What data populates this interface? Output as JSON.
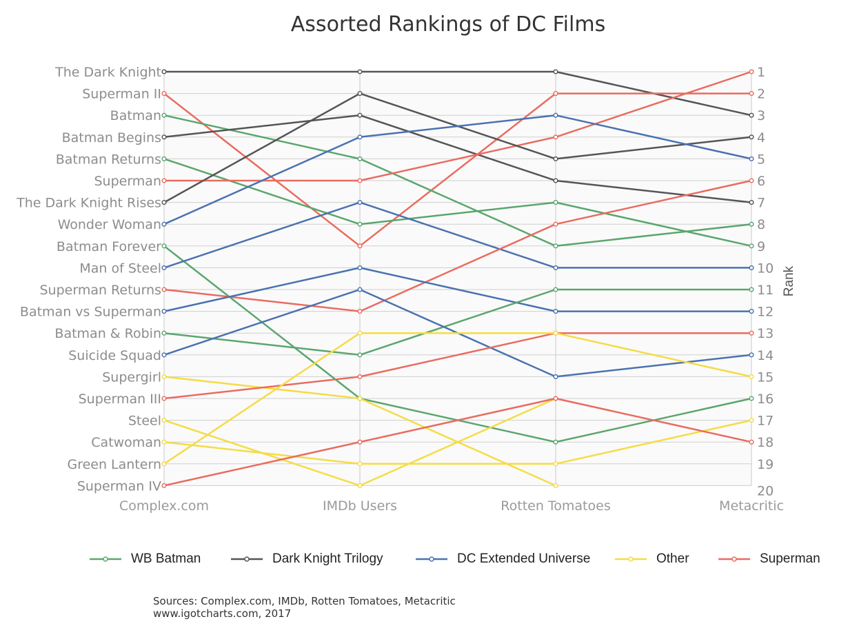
{
  "chart_data": {
    "type": "line",
    "title": "Assorted Rankings of DC Films",
    "ylabel": "Rank",
    "x": [
      "Complex.com",
      "IMDb Users",
      "Rotten Tomatoes",
      "Metacritic"
    ],
    "ylim": [
      1,
      20
    ],
    "y_inverted": true,
    "grid": true,
    "legend_position": "bottom",
    "left_labels": [
      "The Dark Knight",
      "Superman II",
      "Batman",
      "Batman Begins",
      "Batman Returns",
      "Superman",
      "The Dark Knight Rises",
      "Wonder Woman",
      "Batman Forever",
      "Man of Steel",
      "Superman Returns",
      "Batman vs Superman",
      "Batman & Robin",
      "Suicide Squad",
      "Supergirl",
      "Superman III",
      "Steel",
      "Catwoman",
      "Green Lantern",
      "Superman IV"
    ],
    "right_ticks": [
      "1",
      "2",
      "3",
      "4",
      "5",
      "6",
      "7",
      "8",
      "9",
      "10",
      "11",
      "12",
      "13",
      "14",
      "15",
      "16",
      "17",
      "18",
      "19",
      "20"
    ],
    "groups": [
      {
        "name": "WB Batman",
        "color": "#5aa66d"
      },
      {
        "name": "Dark Knight Trilogy",
        "color": "#555555"
      },
      {
        "name": "DC Extended Universe",
        "color": "#4a72b0"
      },
      {
        "name": "Other",
        "color": "#f5dc45"
      },
      {
        "name": "Superman",
        "color": "#ea6b5f"
      }
    ],
    "series": [
      {
        "name": "The Dark Knight",
        "group": "Dark Knight Trilogy",
        "values": [
          1,
          1,
          1,
          3
        ]
      },
      {
        "name": "Superman II",
        "group": "Superman",
        "values": [
          2,
          9,
          2,
          2
        ]
      },
      {
        "name": "Batman",
        "group": "WB Batman",
        "values": [
          3,
          5,
          9,
          8
        ]
      },
      {
        "name": "Batman Begins",
        "group": "Dark Knight Trilogy",
        "values": [
          4,
          3,
          6,
          7
        ]
      },
      {
        "name": "Batman Returns",
        "group": "WB Batman",
        "values": [
          5,
          8,
          7,
          9
        ]
      },
      {
        "name": "Superman",
        "group": "Superman",
        "values": [
          6,
          6,
          4,
          1
        ]
      },
      {
        "name": "The Dark Knight Rises",
        "group": "Dark Knight Trilogy",
        "values": [
          7,
          2,
          5,
          4
        ]
      },
      {
        "name": "Wonder Woman",
        "group": "DC Extended Universe",
        "values": [
          8,
          4,
          3,
          5
        ]
      },
      {
        "name": "Batman Forever",
        "group": "WB Batman",
        "values": [
          9,
          16,
          18,
          16
        ]
      },
      {
        "name": "Man of Steel",
        "group": "DC Extended Universe",
        "values": [
          10,
          7,
          10,
          10
        ]
      },
      {
        "name": "Superman Returns",
        "group": "Superman",
        "values": [
          11,
          12,
          8,
          6
        ]
      },
      {
        "name": "Batman vs Superman",
        "group": "DC Extended Universe",
        "values": [
          12,
          10,
          12,
          12
        ]
      },
      {
        "name": "Batman & Robin",
        "group": "WB Batman",
        "values": [
          13,
          14,
          11,
          11
        ]
      },
      {
        "name": "Suicide Squad",
        "group": "DC Extended Universe",
        "values": [
          14,
          11,
          15,
          14
        ]
      },
      {
        "name": "Supergirl",
        "group": "Other",
        "values": [
          15,
          16,
          20,
          null
        ]
      },
      {
        "name": "Superman III",
        "group": "Superman",
        "values": [
          16,
          15,
          13,
          13
        ]
      },
      {
        "name": "Steel",
        "group": "Other",
        "values": [
          17,
          20,
          16,
          null
        ]
      },
      {
        "name": "Catwoman",
        "group": "Other",
        "values": [
          18,
          19,
          19,
          17
        ]
      },
      {
        "name": "Green Lantern",
        "group": "Other",
        "values": [
          19,
          13,
          13,
          15
        ]
      },
      {
        "name": "Superman IV",
        "group": "Superman",
        "values": [
          20,
          18,
          16,
          18
        ]
      }
    ]
  },
  "source": {
    "line1": "Sources: Complex.com, IMDb, Rotten Tomatoes, Metacritic",
    "line2": "www.igotcharts.com, 2017"
  }
}
